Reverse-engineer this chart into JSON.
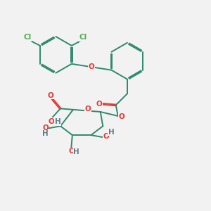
{
  "background_color": "#f2f2f2",
  "bond_color": "#2d8a6e",
  "cl_color": "#4caf50",
  "o_color": "#e53935",
  "h_color": "#607d8b",
  "lw": 1.4,
  "dbl_sep": 0.055,
  "xlim": [
    0,
    10
  ],
  "ylim": [
    0,
    10
  ],
  "figsize": [
    3.0,
    3.0
  ],
  "dpi": 100
}
